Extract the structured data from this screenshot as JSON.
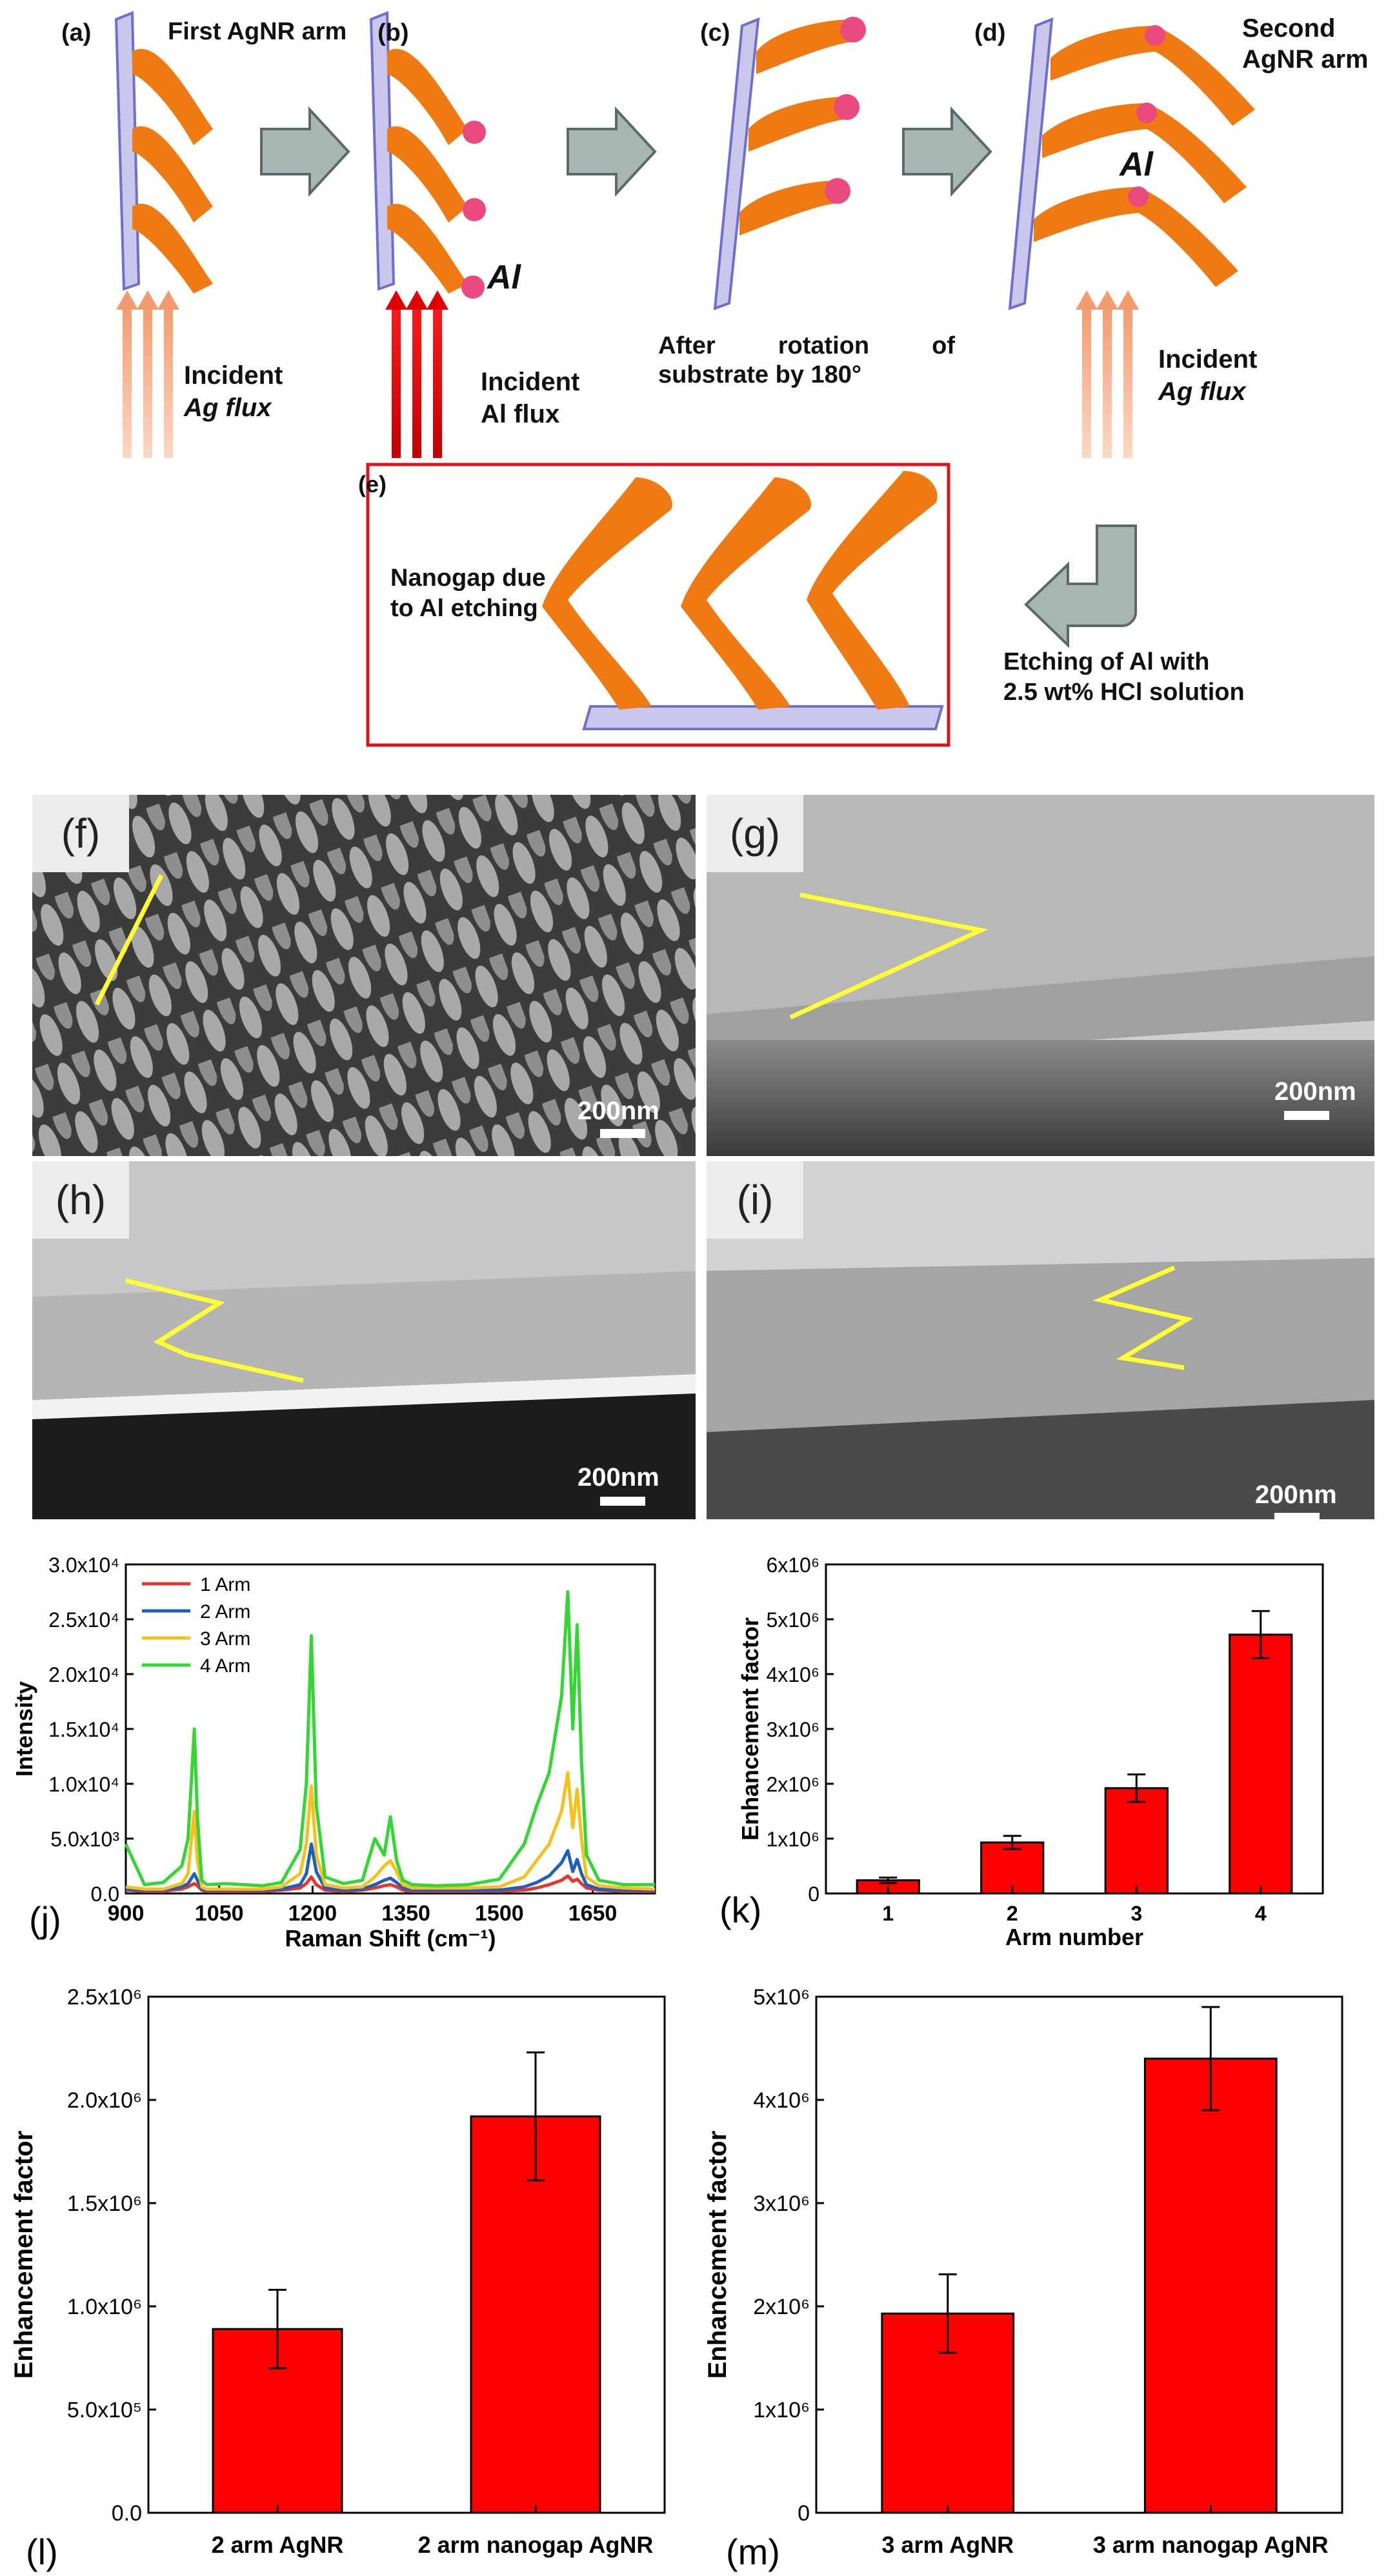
{
  "schematic": {
    "panels": {
      "a": "(a)",
      "b": "(b)",
      "c": "(c)",
      "d": "(d)",
      "e": "(e)"
    },
    "first_arm": "First AgNR arm",
    "second_arm_1": "Second",
    "second_arm_2": "AgNR arm",
    "al_b": "Al",
    "al_d": "Al",
    "incident_ag_a_1": "Incident",
    "incident_ag_a_2": "Ag flux",
    "incident_al_1": "Incident",
    "incident_al_2": "Al flux",
    "rotation_1": "After rotation of",
    "rotation_2": "substrate by 180°",
    "incident_ag_d_1": "Incident",
    "incident_ag_d_2": "Ag flux",
    "nanogap_1": "Nanogap due",
    "nanogap_2": "to Al etching",
    "etching_1": "Etching of Al with",
    "etching_2": "2.5 wt% HCl solution"
  },
  "sem": {
    "f": {
      "tag": "(f)",
      "scale": "200nm"
    },
    "g": {
      "tag": "(g)",
      "scale": "200nm"
    },
    "h": {
      "tag": "(h)",
      "scale": "200nm"
    },
    "i": {
      "tag": "(i)",
      "scale": "200nm"
    }
  },
  "colors": {
    "bar": "#ff0000",
    "arm1": "#e8352d",
    "arm2": "#1f5fbf",
    "arm3": "#f5c11a",
    "arm4": "#33d633",
    "nanorod": "#f07a12"
  },
  "chart_data": [
    {
      "id": "j",
      "panel_label": "(j)",
      "type": "line",
      "xlabel": "Raman Shift (cm⁻¹)",
      "ylabel": "Intensity",
      "xlim": [
        900,
        1750
      ],
      "ylim": [
        0,
        30000
      ],
      "xticks": [
        "900",
        "1050",
        "1200",
        "1350",
        "1500",
        "1650"
      ],
      "yticks": [
        "0.0",
        "5.0x10³",
        "1.0x10⁴",
        "1.5x10⁴",
        "2.0x10⁴",
        "2.5x10⁴",
        "3.0x10⁴"
      ],
      "legend_position": "top-left",
      "x": [
        900,
        930,
        960,
        990,
        1000,
        1010,
        1015,
        1022,
        1030,
        1060,
        1090,
        1120,
        1150,
        1180,
        1190,
        1198,
        1206,
        1220,
        1250,
        1280,
        1300,
        1315,
        1325,
        1335,
        1345,
        1360,
        1400,
        1450,
        1500,
        1540,
        1560,
        1580,
        1600,
        1610,
        1618,
        1625,
        1632,
        1640,
        1660,
        1700,
        1750
      ],
      "series": [
        {
          "name": "1 Arm",
          "values": [
            300,
            200,
            200,
            400,
            600,
            900,
            700,
            300,
            200,
            200,
            200,
            200,
            300,
            500,
            900,
            1500,
            800,
            300,
            200,
            300,
            500,
            700,
            800,
            600,
            300,
            200,
            200,
            200,
            200,
            300,
            500,
            800,
            1200,
            1600,
            1100,
            1300,
            900,
            500,
            300,
            200,
            200
          ]
        },
        {
          "name": "2 Arm",
          "values": [
            400,
            300,
            300,
            600,
            900,
            1800,
            1200,
            400,
            300,
            300,
            300,
            300,
            400,
            800,
            1800,
            4500,
            2000,
            500,
            300,
            400,
            800,
            1200,
            1400,
            1000,
            500,
            300,
            300,
            300,
            300,
            600,
            1000,
            1600,
            2800,
            3900,
            2000,
            3100,
            1800,
            800,
            400,
            300,
            300
          ]
        },
        {
          "name": "3 Arm",
          "values": [
            600,
            400,
            400,
            900,
            1800,
            7500,
            3000,
            600,
            400,
            400,
            400,
            400,
            600,
            1800,
            4500,
            9800,
            3500,
            800,
            500,
            600,
            1500,
            2500,
            3000,
            2000,
            800,
            500,
            500,
            500,
            600,
            1500,
            3000,
            4500,
            7500,
            11000,
            6000,
            9500,
            5000,
            1500,
            700,
            500,
            400
          ]
        },
        {
          "name": "4 Arm",
          "values": [
            4500,
            800,
            1000,
            2500,
            5000,
            15000,
            7000,
            1200,
            800,
            900,
            800,
            700,
            1000,
            4000,
            10000,
            23500,
            8000,
            1500,
            900,
            1200,
            5000,
            3500,
            7000,
            3000,
            1200,
            800,
            700,
            800,
            1300,
            4500,
            8000,
            11000,
            18000,
            27500,
            15000,
            24500,
            12000,
            3500,
            1200,
            800,
            800
          ]
        }
      ]
    },
    {
      "id": "k",
      "panel_label": "(k)",
      "type": "bar",
      "xlabel": "Arm number",
      "ylabel": "Enhancement factor",
      "categories": [
        "1",
        "2",
        "3",
        "4"
      ],
      "values": [
        240000,
        930000,
        1920000,
        4720000
      ],
      "errors": [
        50000,
        120000,
        250000,
        430000
      ],
      "ylim": [
        0,
        6000000
      ],
      "yticks": [
        "0",
        "1x10⁶",
        "2x10⁶",
        "3x10⁶",
        "4x10⁶",
        "5x10⁶",
        "6x10⁶"
      ]
    },
    {
      "id": "l",
      "panel_label": "(l)",
      "type": "bar",
      "ylabel": "Enhancement factor",
      "xlabel": "",
      "categories": [
        "2 arm AgNR",
        "2 arm nanogap AgNR"
      ],
      "values": [
        890000,
        1920000
      ],
      "errors": [
        190000,
        310000
      ],
      "ylim": [
        0,
        2500000
      ],
      "yticks": [
        "0.0",
        "5.0x10⁵",
        "1.0x10⁶",
        "1.5x10⁶",
        "2.0x10⁶",
        "2.5x10⁶"
      ]
    },
    {
      "id": "m",
      "panel_label": "(m)",
      "type": "bar",
      "ylabel": "Enhancement factor",
      "xlabel": "",
      "categories": [
        "3 arm AgNR",
        "3 arm nanogap AgNR"
      ],
      "values": [
        1930000,
        4400000
      ],
      "errors": [
        380000,
        500000
      ],
      "ylim": [
        0,
        5000000
      ],
      "yticks": [
        "0",
        "1x10⁶",
        "2x10⁶",
        "3x10⁶",
        "4x10⁶",
        "5x10⁶"
      ]
    }
  ]
}
